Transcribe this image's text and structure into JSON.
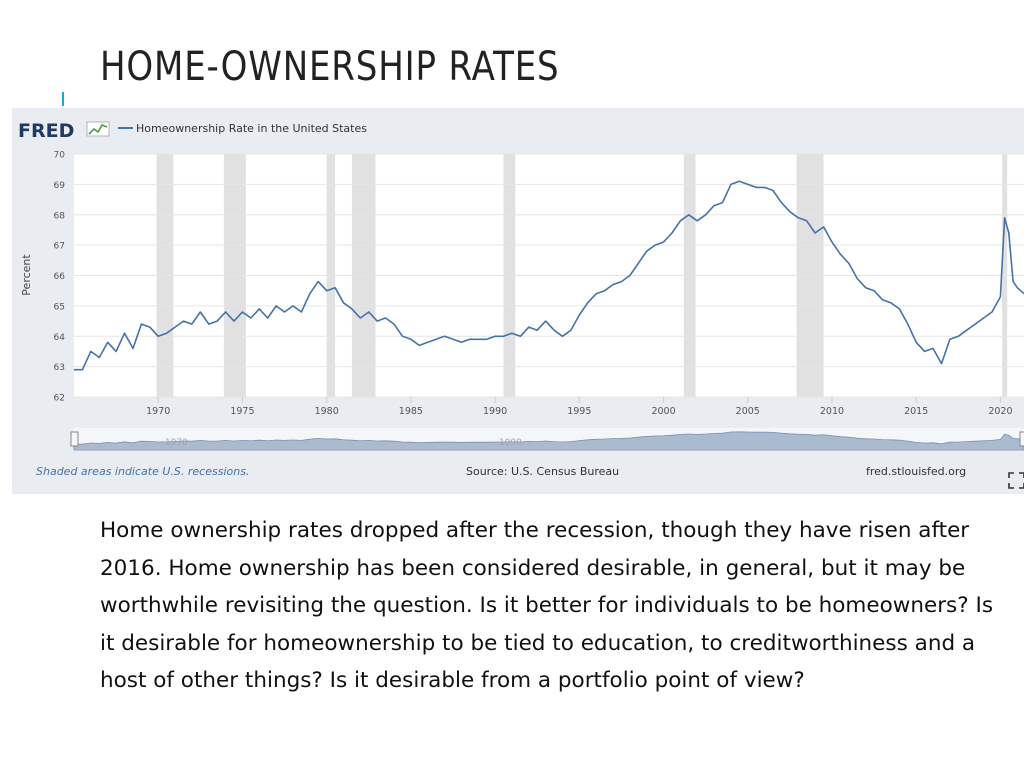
{
  "slide": {
    "title": "HOME-OWNERSHIP RATES",
    "body": "Home ownership rates dropped after the recession, though they have risen after 2016. Home ownership has been considered desirable, in general, but it may be worthwhile revisiting the question.  Is it better for individuals to be homeowners?  Is it desirable for homeownership to be tied to education, to creditworthiness and a host of other things?  Is it desirable from a portfolio point of view?"
  },
  "fred": {
    "logo_text": "FRED",
    "footer_left": "Shaded areas indicate U.S. recessions.",
    "footer_source": "Source: U.S. Census Bureau",
    "footer_right": "fred.stlouisfed.org",
    "nav_labels": [
      "1970",
      "1990"
    ]
  },
  "colors": {
    "series": "#4572a7",
    "recession": "#e1e1e1",
    "panel": "#e9ecf0",
    "accent": "#1aa6d9"
  },
  "chart_data": {
    "type": "line",
    "title": "",
    "xlabel": "",
    "ylabel": "Percent",
    "xlim": [
      1965.0,
      2021.4
    ],
    "ylim": [
      62,
      70
    ],
    "yticks": [
      62,
      63,
      64,
      65,
      66,
      67,
      68,
      69,
      70
    ],
    "xticks": [
      1970,
      1975,
      1980,
      1985,
      1990,
      1995,
      2000,
      2005,
      2010,
      2015,
      2020
    ],
    "grid": true,
    "legend": "top-left",
    "recessions": [
      [
        1969.9,
        1970.9
      ],
      [
        1973.9,
        1975.2
      ],
      [
        1980.0,
        1980.5
      ],
      [
        1981.5,
        1982.9
      ],
      [
        1990.5,
        1991.2
      ],
      [
        2001.2,
        2001.9
      ],
      [
        2007.9,
        2009.5
      ],
      [
        2020.1,
        2020.4
      ]
    ],
    "series": [
      {
        "name": "Homeownership Rate in the United States",
        "x": [
          1965.0,
          1965.5,
          1966.0,
          1966.5,
          1967.0,
          1967.5,
          1968.0,
          1968.5,
          1969.0,
          1969.5,
          1970.0,
          1970.5,
          1971.0,
          1971.5,
          1972.0,
          1972.5,
          1973.0,
          1973.5,
          1974.0,
          1974.5,
          1975.0,
          1975.5,
          1976.0,
          1976.5,
          1977.0,
          1977.5,
          1978.0,
          1978.5,
          1979.0,
          1979.5,
          1980.0,
          1980.5,
          1981.0,
          1981.5,
          1982.0,
          1982.5,
          1983.0,
          1983.5,
          1984.0,
          1984.5,
          1985.0,
          1985.5,
          1986.0,
          1986.5,
          1987.0,
          1987.5,
          1988.0,
          1988.5,
          1989.0,
          1989.5,
          1990.0,
          1990.5,
          1991.0,
          1991.5,
          1992.0,
          1992.5,
          1993.0,
          1993.5,
          1994.0,
          1994.5,
          1995.0,
          1995.5,
          1996.0,
          1996.5,
          1997.0,
          1997.5,
          1998.0,
          1998.5,
          1999.0,
          1999.5,
          2000.0,
          2000.5,
          2001.0,
          2001.5,
          2002.0,
          2002.5,
          2003.0,
          2003.5,
          2004.0,
          2004.5,
          2005.0,
          2005.5,
          2006.0,
          2006.5,
          2007.0,
          2007.5,
          2008.0,
          2008.5,
          2009.0,
          2009.5,
          2010.0,
          2010.5,
          2011.0,
          2011.5,
          2012.0,
          2012.5,
          2013.0,
          2013.5,
          2014.0,
          2014.5,
          2015.0,
          2015.5,
          2016.0,
          2016.5,
          2017.0,
          2017.5,
          2018.0,
          2018.5,
          2019.0,
          2019.5,
          2020.0,
          2020.25,
          2020.5,
          2020.75,
          2021.0,
          2021.4
        ],
        "values": [
          62.9,
          62.9,
          63.5,
          63.3,
          63.8,
          63.5,
          64.1,
          63.6,
          64.4,
          64.3,
          64.0,
          64.1,
          64.3,
          64.5,
          64.4,
          64.8,
          64.4,
          64.5,
          64.8,
          64.5,
          64.8,
          64.6,
          64.9,
          64.6,
          65.0,
          64.8,
          65.0,
          64.8,
          65.4,
          65.8,
          65.5,
          65.6,
          65.1,
          64.9,
          64.6,
          64.8,
          64.5,
          64.6,
          64.4,
          64.0,
          63.9,
          63.7,
          63.8,
          63.9,
          64.0,
          63.9,
          63.8,
          63.9,
          63.9,
          63.9,
          64.0,
          64.0,
          64.1,
          64.0,
          64.3,
          64.2,
          64.5,
          64.2,
          64.0,
          64.2,
          64.7,
          65.1,
          65.4,
          65.5,
          65.7,
          65.8,
          66.0,
          66.4,
          66.8,
          67.0,
          67.1,
          67.4,
          67.8,
          68.0,
          67.8,
          68.0,
          68.3,
          68.4,
          69.0,
          69.1,
          69.0,
          68.9,
          68.9,
          68.8,
          68.4,
          68.1,
          67.9,
          67.8,
          67.4,
          67.6,
          67.1,
          66.7,
          66.4,
          65.9,
          65.6,
          65.5,
          65.2,
          65.1,
          64.9,
          64.4,
          63.8,
          63.5,
          63.6,
          63.1,
          63.9,
          64.0,
          64.2,
          64.4,
          64.6,
          64.8,
          65.3,
          67.9,
          67.4,
          65.8,
          65.6,
          65.4
        ]
      }
    ]
  }
}
